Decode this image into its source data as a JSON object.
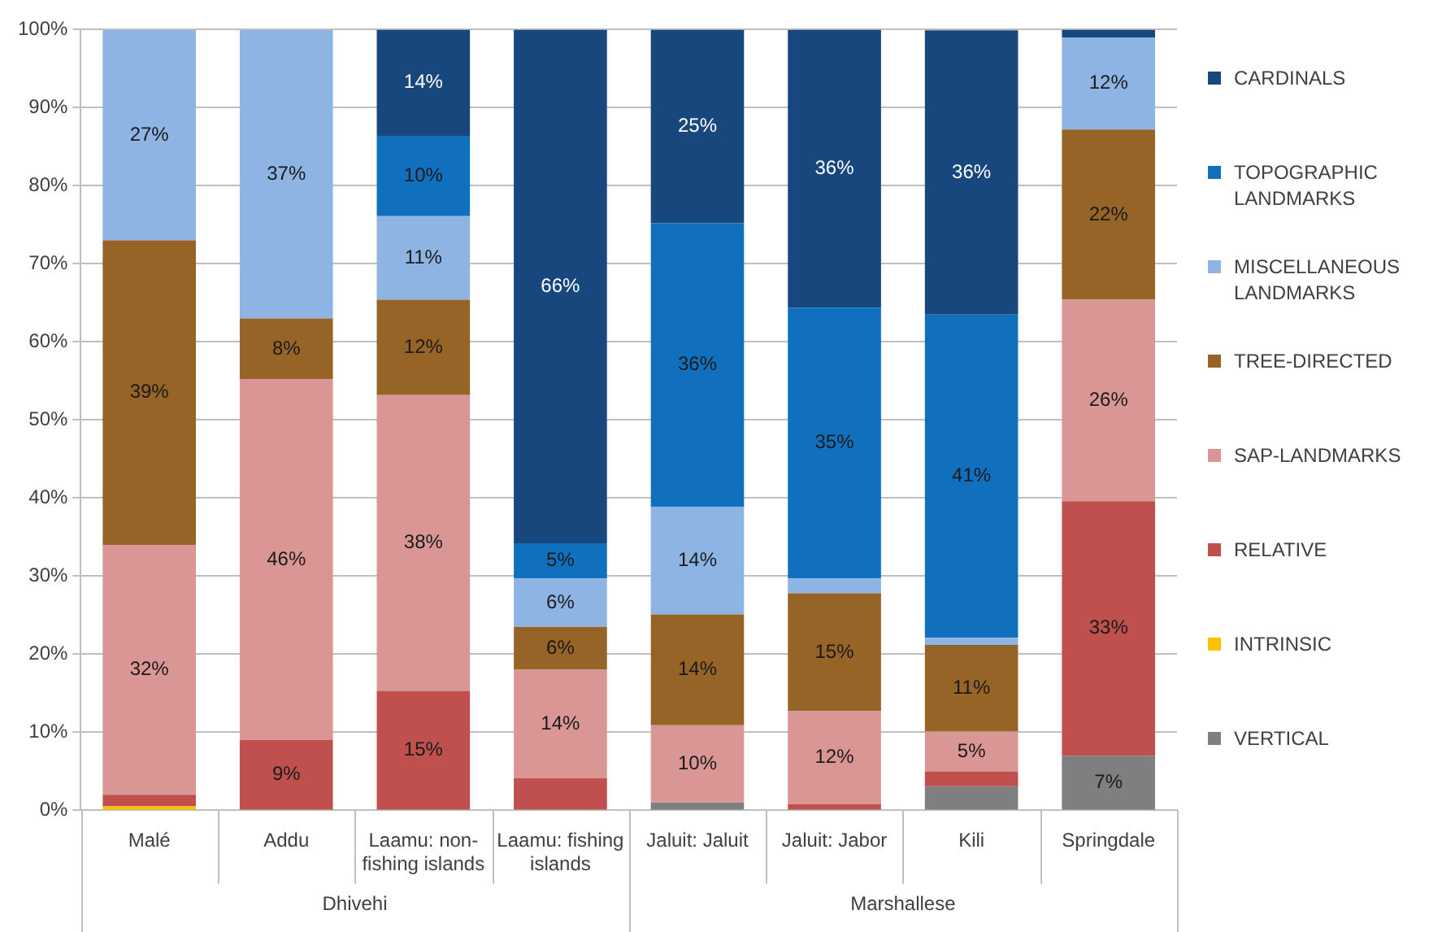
{
  "chart_data": {
    "type": "bar",
    "stacked": true,
    "categories": [
      "Malé",
      "Addu",
      "Laamu: non-fishing islands",
      "Laamu: fishing islands",
      "Jaluit: Jaluit",
      "Jaluit: Jabor",
      "Kili",
      "Springdale"
    ],
    "series": [
      {
        "name": "VERTICAL",
        "color": "#7f7f7f",
        "values": [
          0,
          0,
          0,
          0,
          1,
          0,
          3.1,
          7
        ],
        "value_labels": [
          null,
          null,
          null,
          null,
          null,
          null,
          null,
          "7%"
        ]
      },
      {
        "name": "INTRINSIC",
        "color": "#ffc000",
        "values": [
          0.5,
          0,
          0,
          0,
          0,
          0,
          0,
          0
        ],
        "value_labels": [
          null,
          null,
          null,
          null,
          null,
          null,
          null,
          null
        ]
      },
      {
        "name": "RELATIVE",
        "color": "#c0504d",
        "values": [
          1.5,
          9,
          15.3,
          4.1,
          0,
          0.8,
          1.9,
          32.6
        ],
        "value_labels": [
          null,
          "9%",
          "15%",
          null,
          null,
          null,
          null,
          "33%"
        ]
      },
      {
        "name": "SAP-LANDMARKS",
        "color": "#d99694",
        "values": [
          32,
          46.2,
          37.9,
          13.9,
          9.9,
          11.9,
          5.1,
          25.8
        ],
        "value_labels": [
          "32%",
          "46%",
          "38%",
          "14%",
          "10%",
          "12%",
          "5%",
          "26%"
        ]
      },
      {
        "name": "TREE-DIRECTED",
        "color": "#976428",
        "values": [
          39,
          7.8,
          12.2,
          5.5,
          14.2,
          15.1,
          11.1,
          21.8
        ],
        "value_labels": [
          "39%",
          "8%",
          "12%",
          "6%",
          "14%",
          "15%",
          "11%",
          "22%"
        ]
      },
      {
        "name": "MISCELLANEOUS LANDMARKS",
        "color": "#8eb4e3",
        "values": [
          27,
          37,
          10.7,
          6.2,
          13.8,
          1.9,
          0.9,
          11.8
        ],
        "value_labels": [
          "27%",
          "37%",
          "11%",
          "6%",
          "14%",
          null,
          null,
          "12%"
        ]
      },
      {
        "name": "TOPOGRAPHIC LANDMARKS",
        "color": "#1170bd",
        "values": [
          0,
          0,
          10.3,
          4.5,
          36.3,
          34.7,
          41.4,
          0
        ],
        "value_labels": [
          null,
          null,
          "10%",
          "5%",
          "36%",
          "35%",
          "41%",
          null
        ]
      },
      {
        "name": "CARDINALS",
        "color": "#17477c",
        "values": [
          0,
          0,
          13.6,
          65.8,
          24.8,
          35.6,
          36.4,
          1
        ],
        "value_labels": [
          null,
          null,
          "14%",
          "66%",
          "25%",
          "36%",
          "36%",
          null
        ]
      }
    ],
    "ylim": [
      0,
      100
    ],
    "yticks": [
      {
        "value": 0,
        "label": "0%"
      },
      {
        "value": 10,
        "label": "10%"
      },
      {
        "value": 20,
        "label": "20%"
      },
      {
        "value": 30,
        "label": "30%"
      },
      {
        "value": 40,
        "label": "40%"
      },
      {
        "value": 50,
        "label": "50%"
      },
      {
        "value": 60,
        "label": "60%"
      },
      {
        "value": 70,
        "label": "70%"
      },
      {
        "value": 80,
        "label": "80%"
      },
      {
        "value": 90,
        "label": "90%"
      },
      {
        "value": 100,
        "label": "100%"
      }
    ],
    "annotations": [
      "Dhivehi",
      "Marshallese"
    ],
    "grid": "y",
    "legend": "right"
  }
}
